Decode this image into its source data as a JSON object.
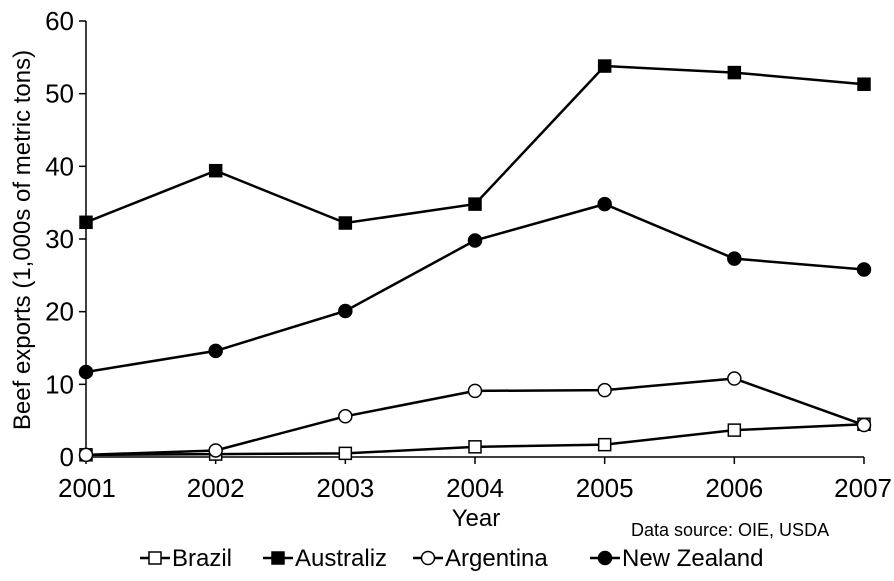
{
  "chart_data": {
    "type": "line",
    "title": "",
    "xlabel": "Year",
    "ylabel": "Beef exports (1,000s of metric tons)",
    "ylim": [
      0,
      60
    ],
    "yticks": [
      "0",
      "10",
      "20",
      "30",
      "40",
      "50",
      "60"
    ],
    "categories": [
      "2001",
      "2002",
      "2003",
      "2004",
      "2005",
      "2006",
      "2007"
    ],
    "grid": false,
    "legend_position": "bottom",
    "source_note": "Data source: OIE, USDA",
    "series": [
      {
        "name": "Brazil",
        "marker": "square-open",
        "values": [
          0.3,
          0.4,
          0.5,
          1.4,
          1.7,
          3.7,
          4.5
        ]
      },
      {
        "name": "Australiz",
        "marker": "square-filled",
        "values": [
          32.3,
          39.4,
          32.2,
          34.8,
          53.8,
          52.9,
          51.3
        ]
      },
      {
        "name": "Argentina",
        "marker": "circle-open",
        "values": [
          0.3,
          0.9,
          5.6,
          9.1,
          9.2,
          10.8,
          4.4
        ]
      },
      {
        "name": "New Zealand",
        "marker": "circle-filled",
        "values": [
          11.7,
          14.6,
          20.1,
          29.8,
          34.8,
          27.3,
          25.8
        ]
      }
    ]
  }
}
